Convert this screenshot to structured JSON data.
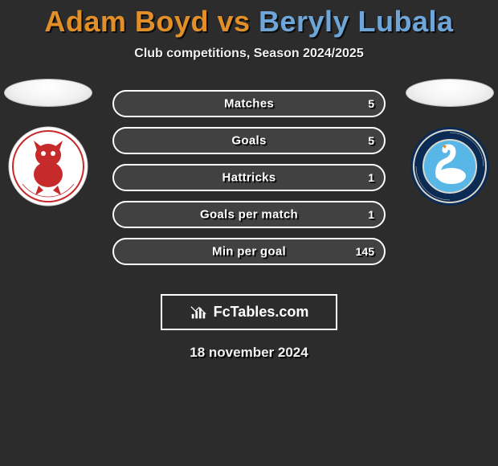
{
  "title": {
    "left": "Adam Boyd",
    "right": "Beryly Lubala",
    "separator": " vs ",
    "left_color": "#e28f28",
    "right_color": "#6fa6d9"
  },
  "subtitle": "Club competitions, Season 2024/2025",
  "background_color": "#2c2c2c",
  "bar_border_color": "#ffffff",
  "bar_fill_color": "rgba(255,255,255,0.10)",
  "text_shadow": "2px 2px 0 rgba(0,0,0,0.85)",
  "left_player": {
    "badge": {
      "bg": "#ffffff",
      "border": "#d6d6d6"
    }
  },
  "right_player": {
    "badge": {
      "bg_outer": "#0b2a54",
      "bg_inner": "#0e3f7a",
      "ring": "#d8d8cc"
    }
  },
  "stats": [
    {
      "label": "Matches",
      "value_right": "5",
      "fill_pct": 100
    },
    {
      "label": "Goals",
      "value_right": "5",
      "fill_pct": 100
    },
    {
      "label": "Hattricks",
      "value_right": "1",
      "fill_pct": 100
    },
    {
      "label": "Goals per match",
      "value_right": "1",
      "fill_pct": 100
    },
    {
      "label": "Min per goal",
      "value_right": "145",
      "fill_pct": 100
    }
  ],
  "brand": "FcTables.com",
  "date": "18 november 2024"
}
